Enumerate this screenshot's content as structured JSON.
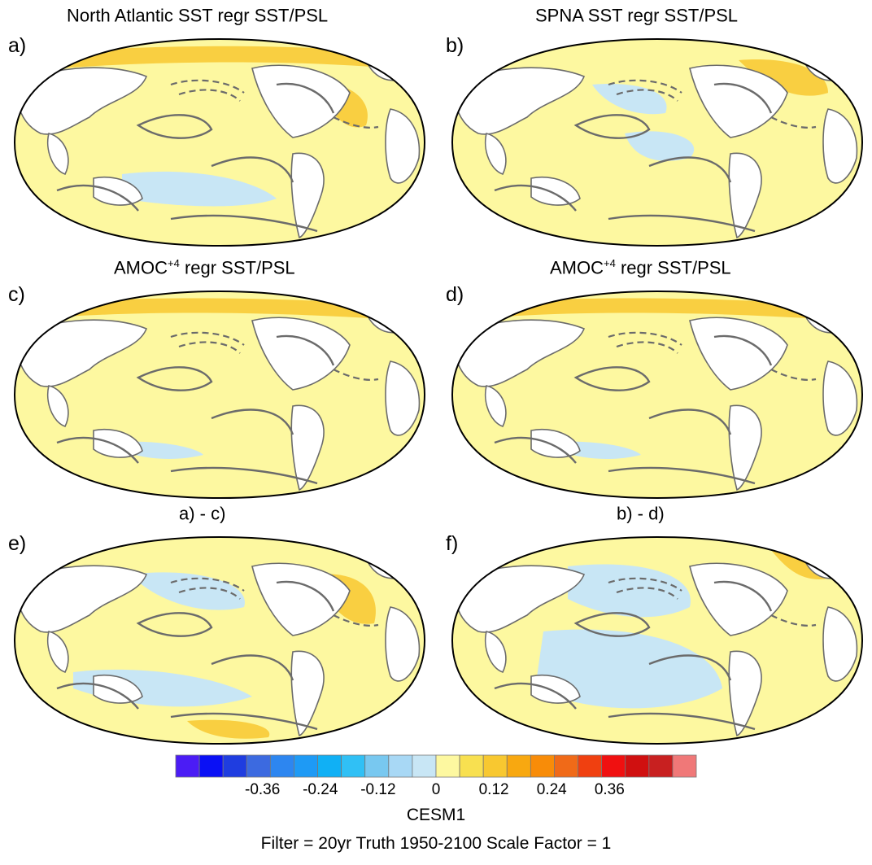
{
  "panels": [
    {
      "label": "a)",
      "title_main": "North Atlantic SST regr SST/PSL",
      "title_sup": "",
      "title_rest": ""
    },
    {
      "label": "b)",
      "title_main": "SPNA SST regr SST/PSL",
      "title_sup": "",
      "title_rest": ""
    },
    {
      "label": "c)",
      "title_main": "AMOC",
      "title_sup": "+4",
      "title_rest": " regr SST/PSL"
    },
    {
      "label": "d)",
      "title_main": "AMOC",
      "title_sup": "+4",
      "title_rest": " regr SST/PSL"
    },
    {
      "label": "e)",
      "title_main": "a) - c)",
      "title_sup": "",
      "title_rest": ""
    },
    {
      "label": "f)",
      "title_main": "b) - d)",
      "title_sup": "",
      "title_rest": ""
    }
  ],
  "colorbar": {
    "colors": [
      "#4b1cf5",
      "#0a10f5",
      "#1f3de0",
      "#3c6ae0",
      "#2d86f0",
      "#1e9af5",
      "#10b0f5",
      "#30c0f5",
      "#78c8f0",
      "#a8d8f5",
      "#c8e6f5",
      "#fdf8a0",
      "#f8e050",
      "#f8c830",
      "#f8a810",
      "#f88c08",
      "#f06a18",
      "#f04010",
      "#f01010",
      "#d01010",
      "#c82020",
      "#f07878"
    ],
    "tick_labels": [
      "-0.36",
      "-0.24",
      "-0.12",
      "0",
      "0.12",
      "0.24",
      "0.36"
    ],
    "tick_values": [
      -0.36,
      -0.24,
      -0.12,
      0,
      0.12,
      0.24,
      0.36
    ],
    "min": -0.54,
    "max": 0.54
  },
  "model": "CESM1",
  "subtitle": "Filter = 20yr   Truth 1950-2100   Scale Factor = 1",
  "palette": {
    "land": "#ffffff",
    "warm": "#fdf8a0",
    "cool": "#c8e6f5",
    "contour": "#6b6b6b"
  }
}
